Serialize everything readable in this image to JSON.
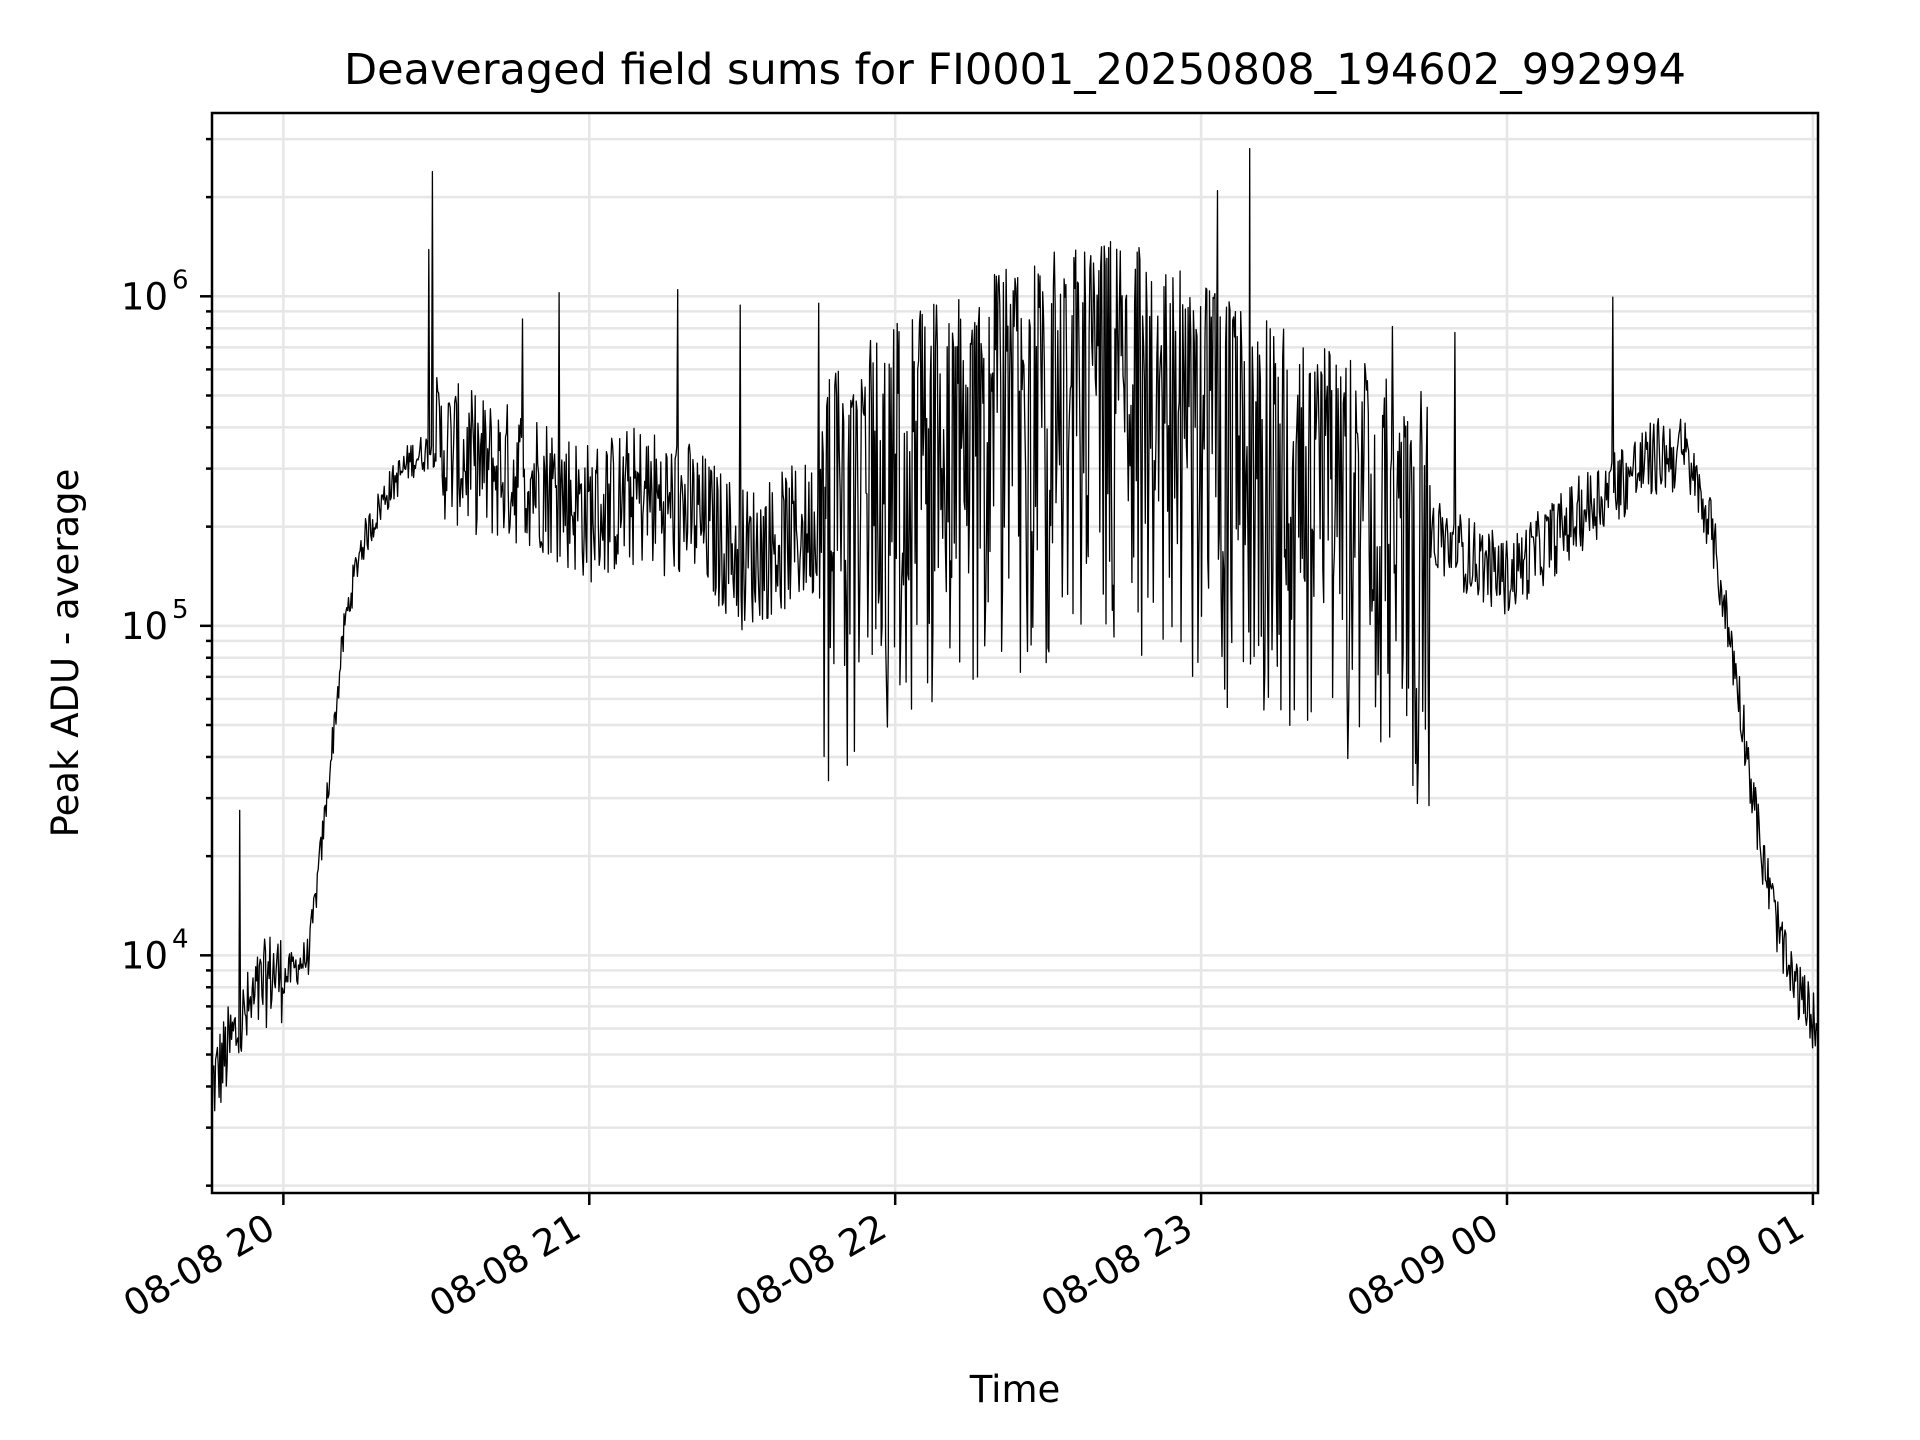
{
  "chart_data": {
    "type": "line",
    "title": "Deaveraged field sums for FI0001_20250808_194602_992994",
    "xlabel": "Time",
    "ylabel": "Peak ADU - average",
    "yscale": "log",
    "ylim": [
      1900,
      3600000
    ],
    "xlim": [
      "2025-08-08 19:46",
      "2025-08-09 01:01"
    ],
    "grid": true,
    "x_tick_labels": [
      "08-08 20",
      "08-08 21",
      "08-08 22",
      "08-08 23",
      "08-09 00",
      "08-09 01"
    ],
    "y_tick_labels": [
      {
        "base": "10",
        "exp": "4",
        "value": 10000
      },
      {
        "base": "10",
        "exp": "5",
        "value": 100000
      },
      {
        "base": "10",
        "exp": "6",
        "value": 1000000
      }
    ],
    "series": [
      {
        "color": "#000000",
        "x": [
          "2025-08-08 19:46",
          "2025-08-08 19:50",
          "2025-08-08 19:55",
          "2025-08-08 19:58",
          "2025-08-08 20:00",
          "2025-08-08 20:05",
          "2025-08-08 20:08",
          "2025-08-08 20:10",
          "2025-08-08 20:12",
          "2025-08-08 20:15",
          "2025-08-08 20:20",
          "2025-08-08 20:25",
          "2025-08-08 20:30",
          "2025-08-08 20:40",
          "2025-08-08 20:50",
          "2025-08-08 21:00",
          "2025-08-08 21:10",
          "2025-08-08 21:20",
          "2025-08-08 21:30",
          "2025-08-08 21:45",
          "2025-08-08 22:00",
          "2025-08-08 22:15",
          "2025-08-08 22:30",
          "2025-08-08 22:45",
          "2025-08-08 23:00",
          "2025-08-08 23:15",
          "2025-08-08 23:30",
          "2025-08-08 23:45",
          "2025-08-09 00:00",
          "2025-08-09 00:10",
          "2025-08-09 00:20",
          "2025-08-09 00:30",
          "2025-08-09 00:35",
          "2025-08-09 00:40",
          "2025-08-09 00:45",
          "2025-08-09 00:50",
          "2025-08-09 00:55",
          "2025-08-09 01:01"
        ],
        "y": [
          4000,
          5500,
          7500,
          9000,
          8500,
          10000,
          25000,
          50000,
          100000,
          170000,
          250000,
          320000,
          350000,
          300000,
          280000,
          220000,
          250000,
          220000,
          160000,
          200000,
          330000,
          420000,
          520000,
          580000,
          420000,
          330000,
          250000,
          190000,
          140000,
          190000,
          260000,
          330000,
          330000,
          200000,
          70000,
          20000,
          9000,
          6000
        ]
      }
    ]
  }
}
